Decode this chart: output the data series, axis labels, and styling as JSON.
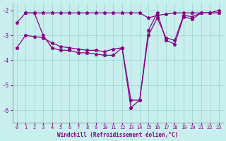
{
  "line_a_x": [
    1,
    2,
    3,
    4,
    5,
    6,
    7,
    8,
    9,
    10,
    11,
    12,
    13,
    14,
    15,
    16,
    17,
    18,
    19,
    20,
    21,
    22,
    23
  ],
  "line_a_y": [
    -2.1,
    -2.1,
    -2.1,
    -2.1,
    -2.1,
    -2.1,
    -2.1,
    -2.1,
    -2.1,
    -2.1,
    -2.1,
    -2.1,
    -2.1,
    -2.1,
    -2.3,
    -2.2,
    -2.15,
    -2.1,
    -2.1,
    -2.1,
    -2.1,
    -2.1,
    -2.0
  ],
  "line_b_x": [
    0,
    1,
    2,
    3,
    4,
    5,
    6,
    7,
    8,
    9,
    10,
    11,
    12,
    13,
    14,
    15,
    16,
    17,
    18,
    19,
    20,
    21,
    22,
    23
  ],
  "line_b_y": [
    -2.5,
    -2.1,
    -2.1,
    -3.0,
    -3.5,
    -3.6,
    -3.6,
    -3.7,
    -3.7,
    -3.75,
    -3.8,
    -3.8,
    -3.5,
    -5.9,
    -5.6,
    -3.0,
    -2.3,
    -3.1,
    -3.2,
    -2.2,
    -2.25,
    -2.1,
    -2.1,
    -2.1
  ],
  "line_c_x": [
    0,
    1,
    2,
    3,
    4,
    5,
    6,
    7,
    8,
    9,
    10,
    11,
    12,
    13,
    14,
    15,
    16,
    17,
    18,
    19,
    20,
    21,
    22,
    23
  ],
  "line_c_y": [
    -3.5,
    -3.0,
    -3.05,
    -3.1,
    -3.3,
    -3.45,
    -3.5,
    -3.55,
    -3.6,
    -3.6,
    -3.65,
    -3.55,
    -3.5,
    -5.6,
    -5.6,
    -2.8,
    -2.1,
    -3.2,
    -3.35,
    -2.25,
    -2.35,
    -2.1,
    -2.1,
    -2.1
  ],
  "line_color": "#880088",
  "bg_color": "#c8eeee",
  "grid_color": "#a0d8d0",
  "xlabel": "Windchill (Refroidissement éolien,°C)",
  "ylim": [
    -6.5,
    -1.7
  ],
  "xlim": [
    -0.5,
    23.5
  ],
  "yticks": [
    -6,
    -5,
    -4,
    -3,
    -2
  ],
  "xticks": [
    0,
    1,
    2,
    3,
    4,
    5,
    6,
    7,
    8,
    9,
    10,
    11,
    12,
    13,
    14,
    15,
    16,
    17,
    18,
    19,
    20,
    21,
    22,
    23
  ],
  "marker": "*",
  "markersize": 3.5,
  "linewidth": 0.9,
  "tick_color": "#880088",
  "label_fontsize": 5.0,
  "xlabel_fontsize": 5.5
}
